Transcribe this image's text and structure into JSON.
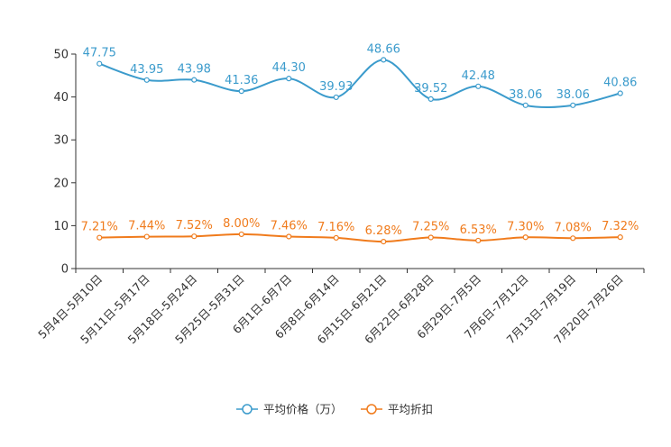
{
  "chart_data": {
    "type": "line",
    "title": "",
    "xlabel": "",
    "ylabel": "",
    "ylim": [
      0,
      50
    ],
    "yticks": [
      0,
      10,
      20,
      30,
      40,
      50
    ],
    "grid": false,
    "legend_position": "bottom-center",
    "categories": [
      "5月4日-5月10日",
      "5月11日-5月17日",
      "5月18日-5月24日",
      "5月25日-5月31日",
      "6月1日-6月7日",
      "6月8日-6月14日",
      "6月15日-6月21日",
      "6月22日-6月28日",
      "6月29日-7月5日",
      "7月6日-7月12日",
      "7月13日-7月19日",
      "7月20日-7月26日"
    ],
    "series": [
      {
        "name": "平均价格（万）",
        "color": "#3b9bcc",
        "values": [
          47.75,
          43.95,
          43.98,
          41.36,
          44.3,
          39.93,
          48.66,
          39.52,
          42.48,
          38.06,
          38.06,
          40.86
        ],
        "labels": [
          "47.75",
          "43.95",
          "43.98",
          "41.36",
          "44.30",
          "39.93",
          "48.66",
          "39.52",
          "42.48",
          "38.06",
          "38.06",
          "40.86"
        ]
      },
      {
        "name": "平均折扣",
        "color": "#f07b1c",
        "values": [
          7.21,
          7.44,
          7.52,
          8.0,
          7.46,
          7.16,
          6.28,
          7.25,
          6.53,
          7.3,
          7.08,
          7.32
        ],
        "labels": [
          "7.21%",
          "7.44%",
          "7.52%",
          "8.00%",
          "7.46%",
          "7.16%",
          "6.28%",
          "7.25%",
          "6.53%",
          "7.30%",
          "7.08%",
          "7.32%"
        ]
      }
    ]
  }
}
